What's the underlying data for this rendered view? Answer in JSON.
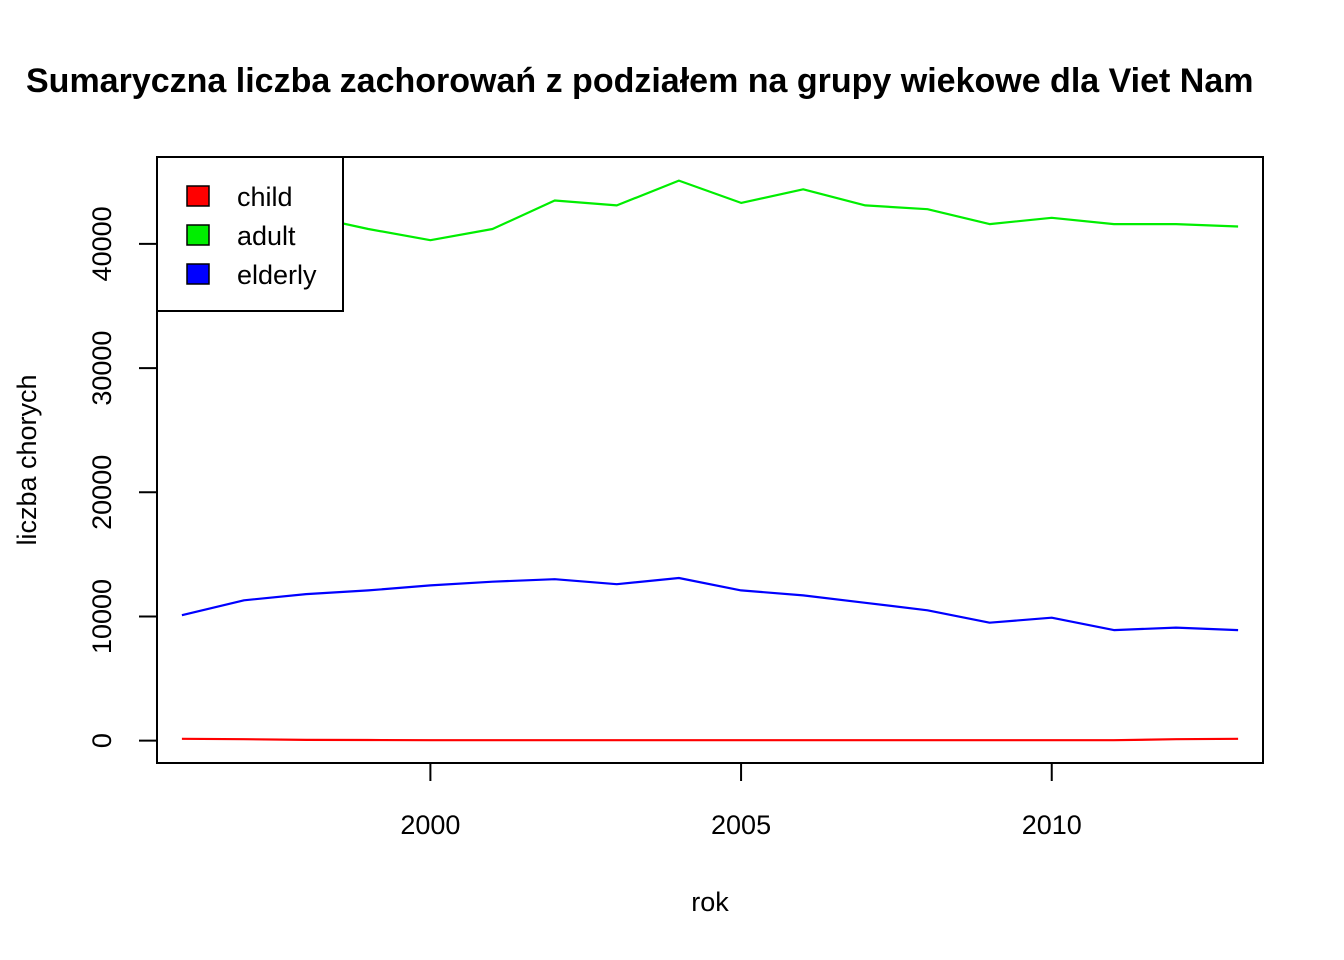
{
  "chart_data": {
    "type": "line",
    "title": "Sumaryczna liczba zachorowań z podziałem na grupy wiekowe dla Viet Nam",
    "xlabel": "rok",
    "ylabel": "liczba chorych",
    "xlim": [
      1995.6,
      2013.4
    ],
    "ylim": [
      -1800,
      47000
    ],
    "x_ticks": [
      2000,
      2005,
      2010
    ],
    "x_tick_labels": [
      "2000",
      "2005",
      "2010"
    ],
    "y_ticks": [
      0,
      10000,
      20000,
      30000,
      40000
    ],
    "y_tick_labels": [
      "0",
      "10000",
      "20000",
      "30000",
      "40000"
    ],
    "grid": false,
    "legend_position": "top-left",
    "x": [
      1996,
      1997,
      1998,
      1999,
      2000,
      2001,
      2002,
      2003,
      2004,
      2005,
      2006,
      2007,
      2008,
      2009,
      2010,
      2011,
      2012,
      2013
    ],
    "series": [
      {
        "name": "child",
        "color": "#ff0000",
        "values": [
          150,
          120,
          60,
          50,
          40,
          40,
          40,
          40,
          40,
          40,
          40,
          40,
          40,
          40,
          40,
          40,
          120,
          150
        ]
      },
      {
        "name": "adult",
        "color": "#00ee00",
        "values": [
          44000,
          43400,
          42300,
          41200,
          40300,
          41200,
          43500,
          43100,
          45100,
          43300,
          44400,
          43100,
          42800,
          41600,
          42100,
          41600,
          41600,
          41400
        ]
      },
      {
        "name": "elderly",
        "color": "#0000ff",
        "values": [
          10100,
          11300,
          11800,
          12100,
          12500,
          12800,
          13000,
          12600,
          13100,
          12100,
          11700,
          11100,
          10500,
          9500,
          9900,
          8900,
          9100,
          8900
        ]
      }
    ]
  }
}
